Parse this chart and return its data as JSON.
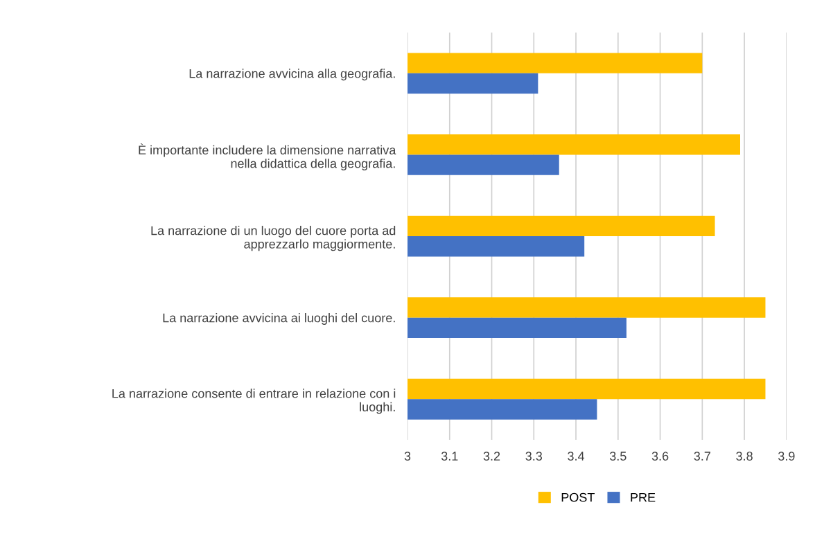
{
  "chart_data": {
    "type": "bar",
    "orientation": "horizontal",
    "categories": [
      "La narrazione avvicina alla geografia.",
      "È importante includere la dimensione narrativa\nnella didattica della geografia.",
      "La narrazione di un luogo del cuore porta ad\napprezzarlo maggiormente.",
      "La narrazione avvicina ai luoghi del cuore.",
      "La narrazione consente di entrare in relazione con i\nluoghi."
    ],
    "series": [
      {
        "name": "POST",
        "color": "#ffc000",
        "values": [
          3.7,
          3.79,
          3.73,
          3.85,
          3.85
        ]
      },
      {
        "name": "PRE",
        "color": "#4472c4",
        "values": [
          3.31,
          3.36,
          3.42,
          3.52,
          3.45
        ]
      }
    ],
    "xlim": [
      3,
      3.9
    ],
    "xticks": [
      3,
      3.1,
      3.2,
      3.3,
      3.4,
      3.5,
      3.6,
      3.7,
      3.8,
      3.9
    ],
    "grid": "x",
    "legend": "bottom"
  }
}
